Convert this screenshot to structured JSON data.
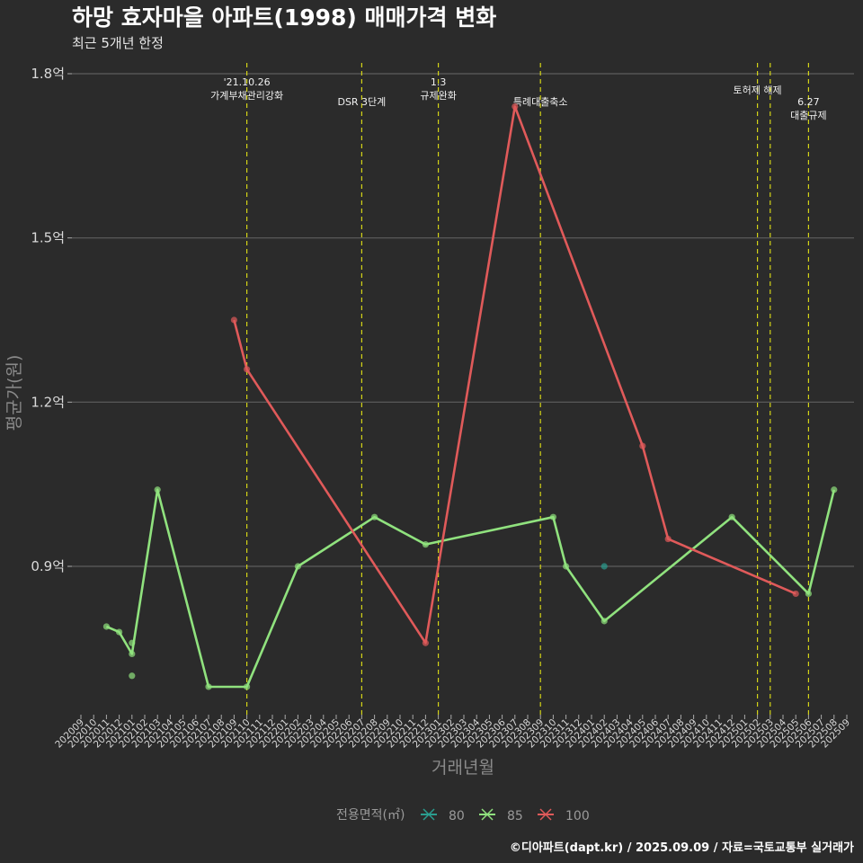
{
  "title": "하망 효자마을 아파트(1998) 매매가격 변화",
  "subtitle": "최근 5개년 한정",
  "caption": "©디아파트(dapt.kr) / 2025.09.09 / 자료=국토교통부 실거래가",
  "chart_data": {
    "type": "line",
    "xlabel": "거래년월",
    "ylabel": "평균가(원)",
    "ylim": [
      0.65,
      1.82
    ],
    "yticks": [
      {
        "value": 0.9,
        "label": "0.9억"
      },
      {
        "value": 1.2,
        "label": "1.2억"
      },
      {
        "value": 1.5,
        "label": "1.5억"
      },
      {
        "value": 1.8,
        "label": "1.8억"
      }
    ],
    "categories": [
      "202009",
      "202010",
      "202011",
      "202012",
      "202101",
      "202102",
      "202103",
      "202104",
      "202105",
      "202106",
      "202107",
      "202108",
      "202109",
      "202110",
      "202111",
      "202112",
      "202201",
      "202202",
      "202203",
      "202204",
      "202205",
      "202206",
      "202207",
      "202208",
      "202209",
      "202210",
      "202211",
      "202212",
      "202301",
      "202302",
      "202303",
      "202304",
      "202305",
      "202306",
      "202307",
      "202308",
      "202309",
      "202310",
      "202311",
      "202312",
      "202401",
      "202402",
      "202403",
      "202404",
      "202405",
      "202406",
      "202407",
      "202408",
      "202409",
      "202410",
      "202411",
      "202412",
      "202501",
      "202502",
      "202503",
      "202504",
      "202505",
      "202506",
      "202507",
      "202508",
      "202509"
    ],
    "grid": true,
    "legend": {
      "title": "전용면적(㎡)",
      "position": "bottom"
    },
    "series": [
      {
        "name": "80",
        "color": "#2a9d8f",
        "points": [
          {
            "x": "202402",
            "y": 0.9
          }
        ],
        "extra_points": []
      },
      {
        "name": "85",
        "color": "#90e27e",
        "points": [
          {
            "x": "202011",
            "y": 0.79
          },
          {
            "x": "202012",
            "y": 0.78
          },
          {
            "x": "202101",
            "y": 0.74
          },
          {
            "x": "202103",
            "y": 1.04
          },
          {
            "x": "202107",
            "y": 0.68
          },
          {
            "x": "202110",
            "y": 0.68
          },
          {
            "x": "202202",
            "y": 0.9
          },
          {
            "x": "202208",
            "y": 0.99
          },
          {
            "x": "202212",
            "y": 0.94
          },
          {
            "x": "202310",
            "y": 0.99
          },
          {
            "x": "202311",
            "y": 0.9
          },
          {
            "x": "202402",
            "y": 0.8
          },
          {
            "x": "202412",
            "y": 0.99
          },
          {
            "x": "202506",
            "y": 0.85
          },
          {
            "x": "202508",
            "y": 1.04
          }
        ],
        "extra_points": [
          {
            "x": "202101",
            "y": 0.76
          },
          {
            "x": "202101",
            "y": 0.7
          }
        ]
      },
      {
        "name": "100",
        "color": "#e05a5a",
        "points": [
          {
            "x": "202109",
            "y": 1.35
          },
          {
            "x": "202110",
            "y": 1.26
          },
          {
            "x": "202212",
            "y": 0.76
          },
          {
            "x": "202307",
            "y": 1.74
          },
          {
            "x": "202405",
            "y": 1.12
          },
          {
            "x": "202407",
            "y": 0.95
          },
          {
            "x": "202505",
            "y": 0.85
          }
        ],
        "extra_points": []
      }
    ],
    "events": [
      {
        "x": "202110",
        "lines": [
          "'21.10.26",
          "가계부채관리강화"
        ],
        "level": 0
      },
      {
        "x": "202207",
        "lines": [
          "DSR 3단계"
        ],
        "level": 2
      },
      {
        "x": "202301",
        "lines": [
          "1.3",
          "규제완화"
        ],
        "level": 0
      },
      {
        "x": "202309",
        "lines": [
          "특례대출축소"
        ],
        "level": 2
      },
      {
        "x": "202502",
        "lines": [
          "토허제 해제"
        ],
        "level": 1
      },
      {
        "x": "202503",
        "lines": [],
        "level": 1
      },
      {
        "x": "202506",
        "lines": [
          "6.27",
          "대출규제"
        ],
        "level": 2
      }
    ]
  }
}
